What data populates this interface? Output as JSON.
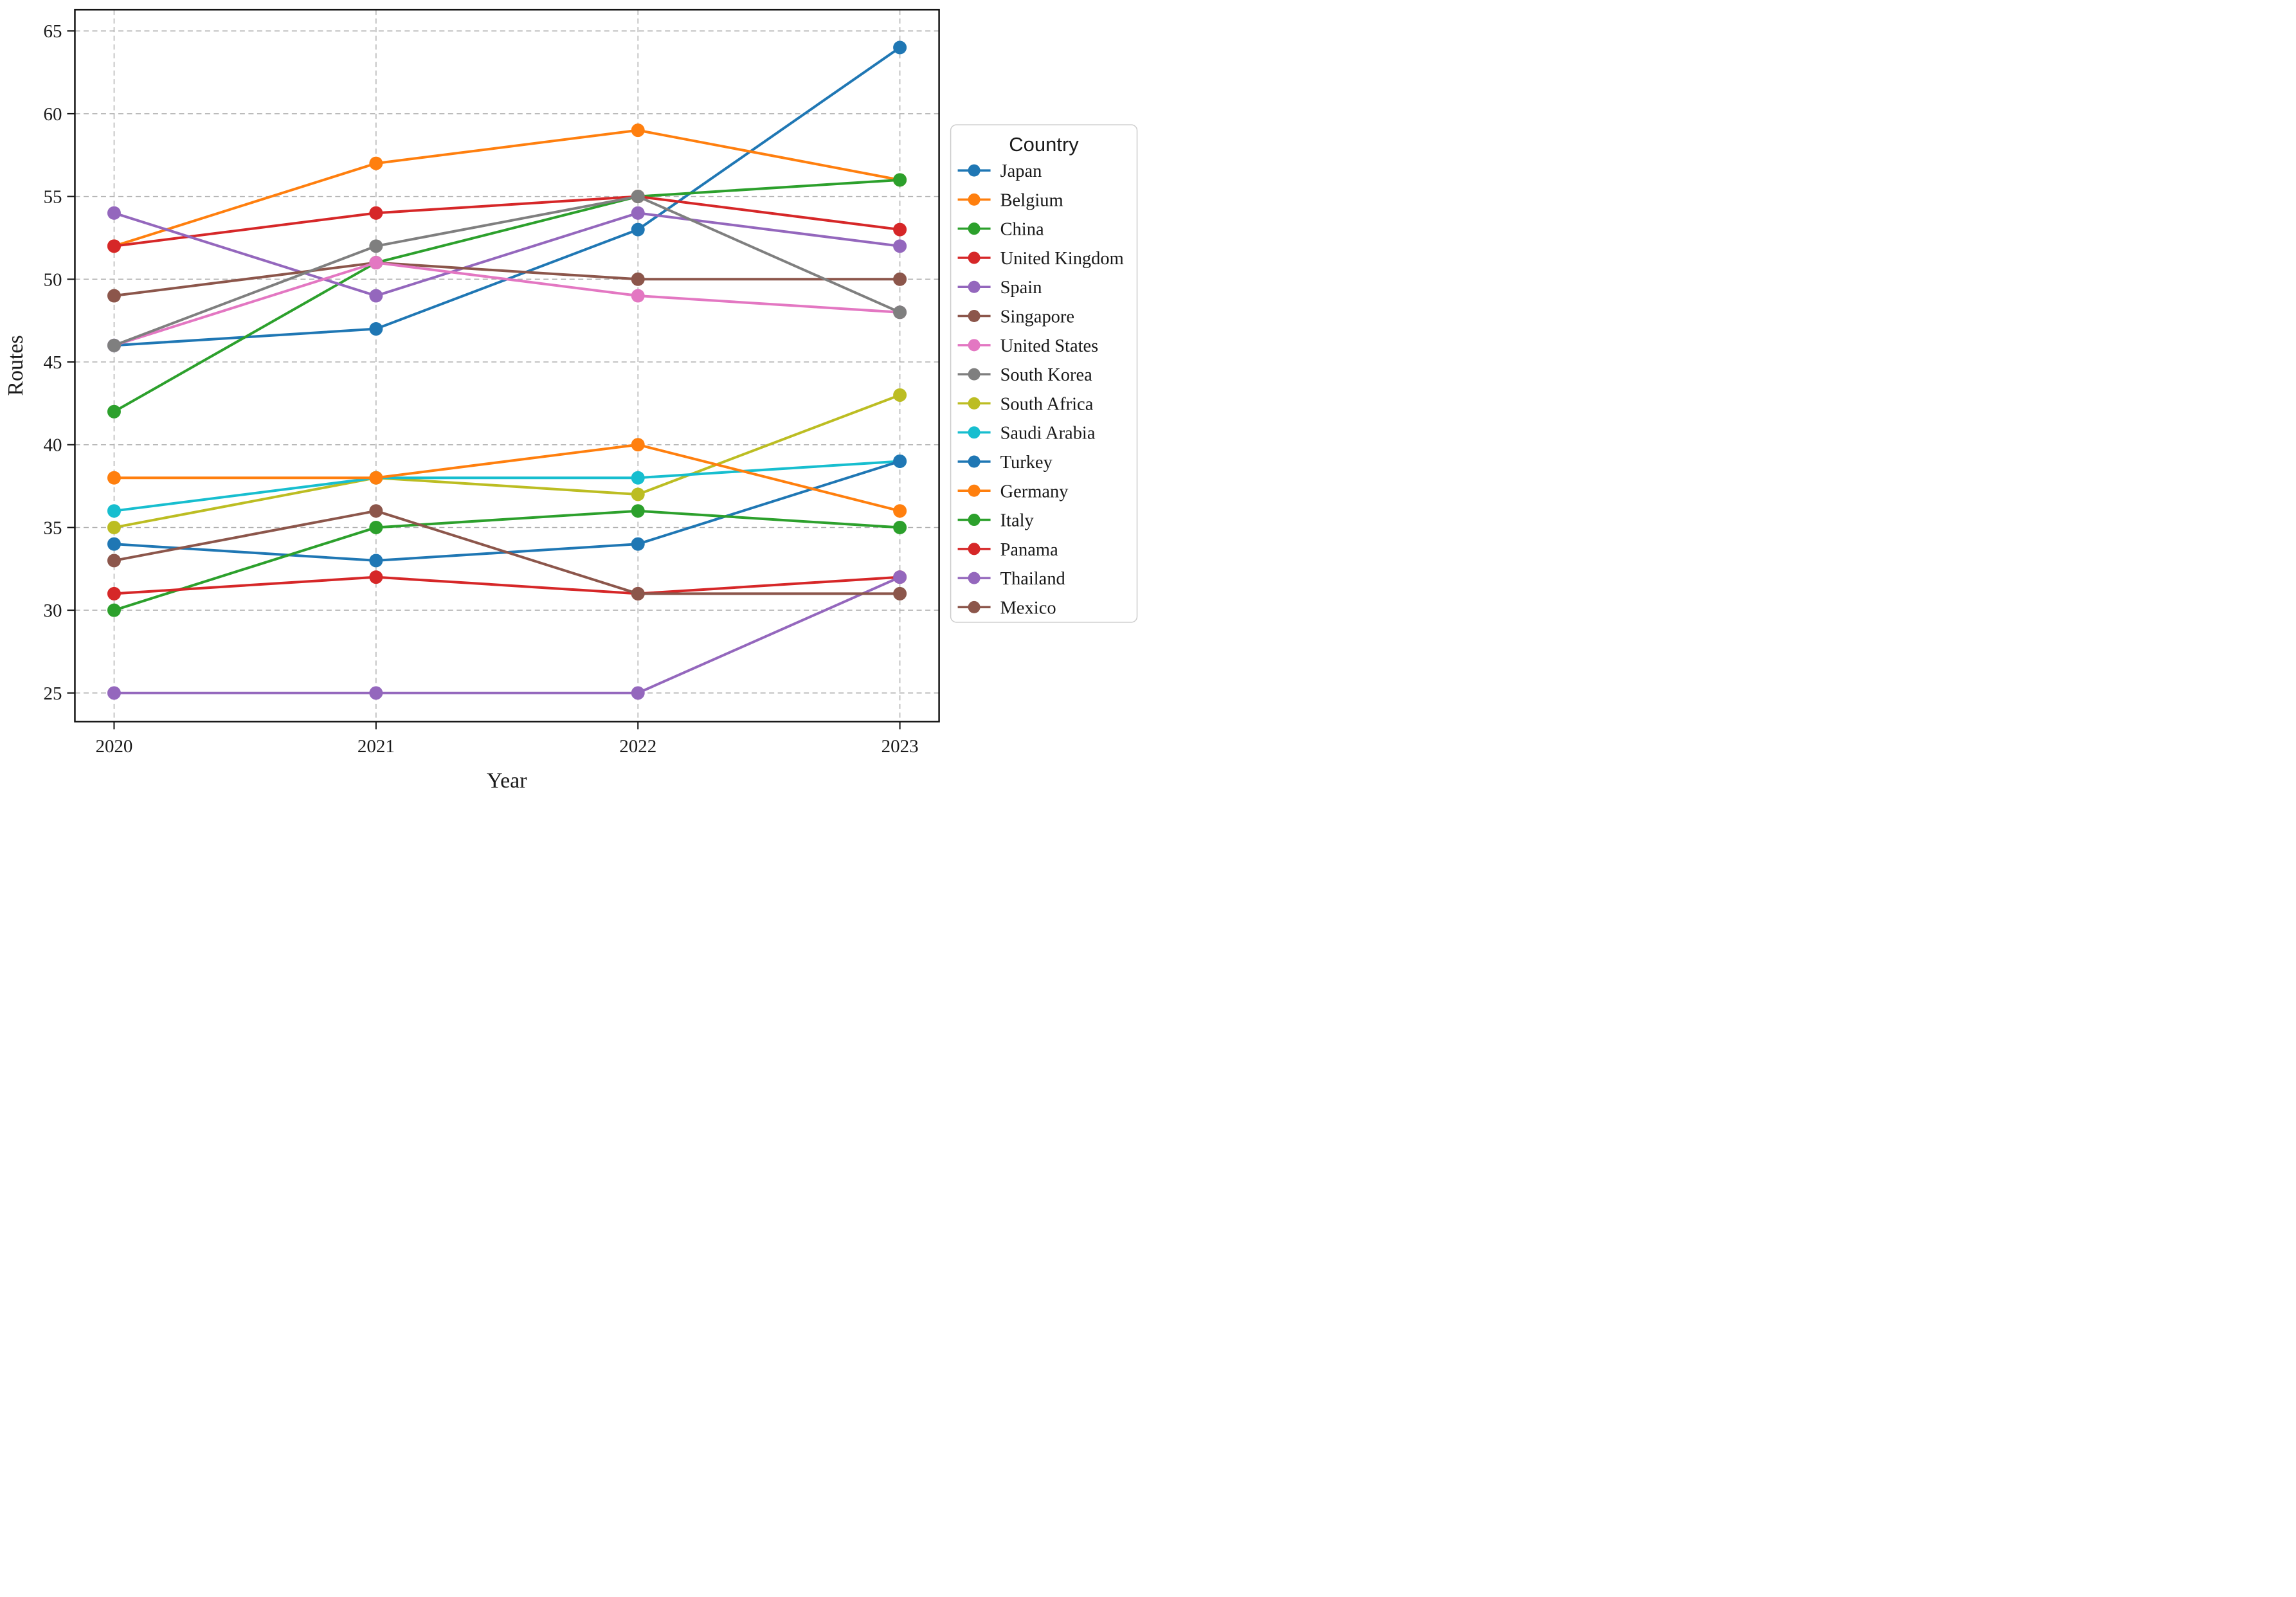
{
  "figure": {
    "background": "#ffffff",
    "text_color": "#1a1a1a",
    "grid_color": "#b0b0b0",
    "spine_color": "#141414"
  },
  "chart_data": {
    "type": "line",
    "title": "",
    "xlabel": "Year",
    "ylabel": "Routes",
    "x": [
      2020,
      2021,
      2022,
      2023
    ],
    "x_tick_labels": [
      "2020",
      "2021",
      "2022",
      "2023"
    ],
    "y_ticks": [
      25,
      30,
      35,
      40,
      45,
      50,
      55,
      60,
      65
    ],
    "y_tick_labels": [
      "25",
      "30",
      "35",
      "40",
      "45",
      "50",
      "55",
      "60",
      "65"
    ],
    "ylim": [
      23,
      66
    ],
    "grid": "dashed",
    "legend_title": "Country",
    "legend_position": "right-outside",
    "series": [
      {
        "name": "Japan",
        "color": "#1f77b4",
        "values": [
          46,
          47,
          53,
          64
        ]
      },
      {
        "name": "Belgium",
        "color": "#ff7f0e",
        "values": [
          52,
          57,
          59,
          56
        ]
      },
      {
        "name": "China",
        "color": "#2ca02c",
        "values": [
          42,
          51,
          55,
          56
        ]
      },
      {
        "name": "United Kingdom",
        "color": "#d62728",
        "values": [
          52,
          54,
          55,
          53
        ]
      },
      {
        "name": "Spain",
        "color": "#9467bd",
        "values": [
          54,
          49,
          54,
          52
        ]
      },
      {
        "name": "Singapore",
        "color": "#8c564b",
        "values": [
          49,
          51,
          50,
          50
        ]
      },
      {
        "name": "United States",
        "color": "#e377c2",
        "values": [
          46,
          51,
          49,
          48
        ]
      },
      {
        "name": "South Korea",
        "color": "#7f7f7f",
        "values": [
          46,
          52,
          55,
          48
        ]
      },
      {
        "name": "South Africa",
        "color": "#bcbd22",
        "values": [
          35,
          38,
          37,
          43
        ]
      },
      {
        "name": "Saudi Arabia",
        "color": "#17becf",
        "values": [
          36,
          38,
          38,
          39
        ]
      },
      {
        "name": "Turkey",
        "color": "#1f77b4",
        "values": [
          34,
          33,
          34,
          39
        ]
      },
      {
        "name": "Germany",
        "color": "#ff7f0e",
        "values": [
          38,
          38,
          40,
          36
        ]
      },
      {
        "name": "Italy",
        "color": "#2ca02c",
        "values": [
          30,
          35,
          36,
          35
        ]
      },
      {
        "name": "Panama",
        "color": "#d62728",
        "values": [
          31,
          32,
          31,
          32
        ]
      },
      {
        "name": "Thailand",
        "color": "#9467bd",
        "values": [
          25,
          25,
          25,
          32
        ]
      },
      {
        "name": "Mexico",
        "color": "#8c564b",
        "values": [
          33,
          36,
          31,
          31
        ]
      }
    ]
  }
}
